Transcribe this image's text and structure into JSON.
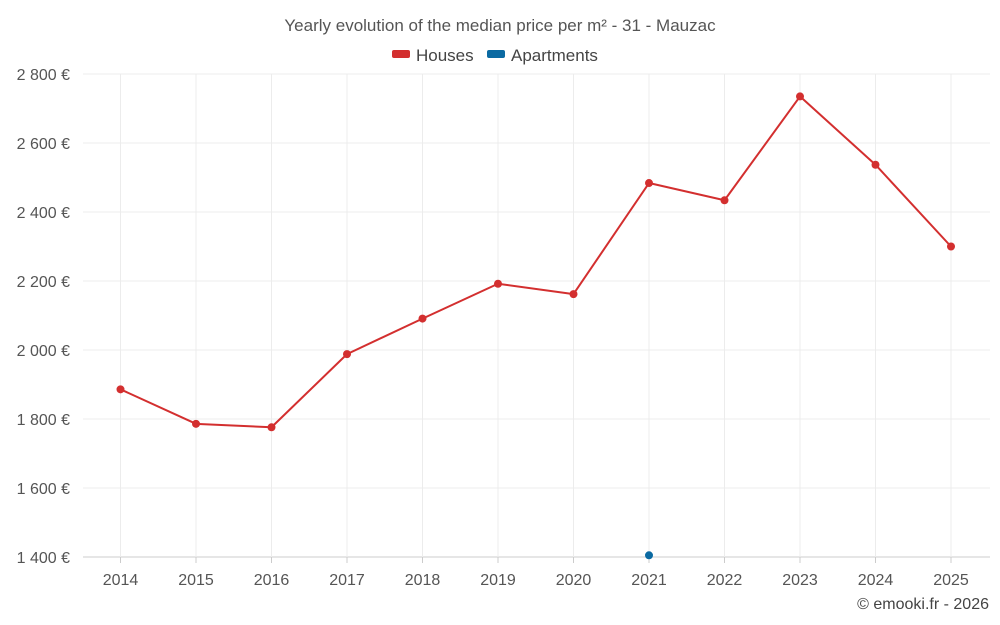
{
  "chart_data": {
    "type": "line",
    "title": "Yearly evolution of the median price per m² - 31 - Mauzac",
    "xlabel": "",
    "ylabel": "",
    "categories": [
      "2014",
      "2015",
      "2016",
      "2017",
      "2018",
      "2019",
      "2020",
      "2021",
      "2022",
      "2023",
      "2024",
      "2025"
    ],
    "y_ticks": [
      1400,
      1600,
      1800,
      2000,
      2200,
      2400,
      2600,
      2800
    ],
    "y_tick_labels": [
      "1 400 €",
      "1 600 €",
      "1 800 €",
      "2 000 €",
      "2 200 €",
      "2 400 €",
      "2 600 €",
      "2 800 €"
    ],
    "ylim": [
      1400,
      2800
    ],
    "grid": true,
    "legend_position": "top-center",
    "series": [
      {
        "name": "Houses",
        "color": "#d32f2f",
        "values": [
          1886,
          1786,
          1776,
          1988,
          2091,
          2192,
          2162,
          2484,
          2434,
          2735,
          2537,
          2300
        ]
      },
      {
        "name": "Apartments",
        "color": "#0b6aa2",
        "values": [
          null,
          null,
          null,
          null,
          null,
          null,
          null,
          1405,
          null,
          null,
          null,
          null
        ]
      }
    ]
  },
  "legend": {
    "houses": "Houses",
    "apartments": "Apartments"
  },
  "credit": "© emooki.fr - 2026"
}
